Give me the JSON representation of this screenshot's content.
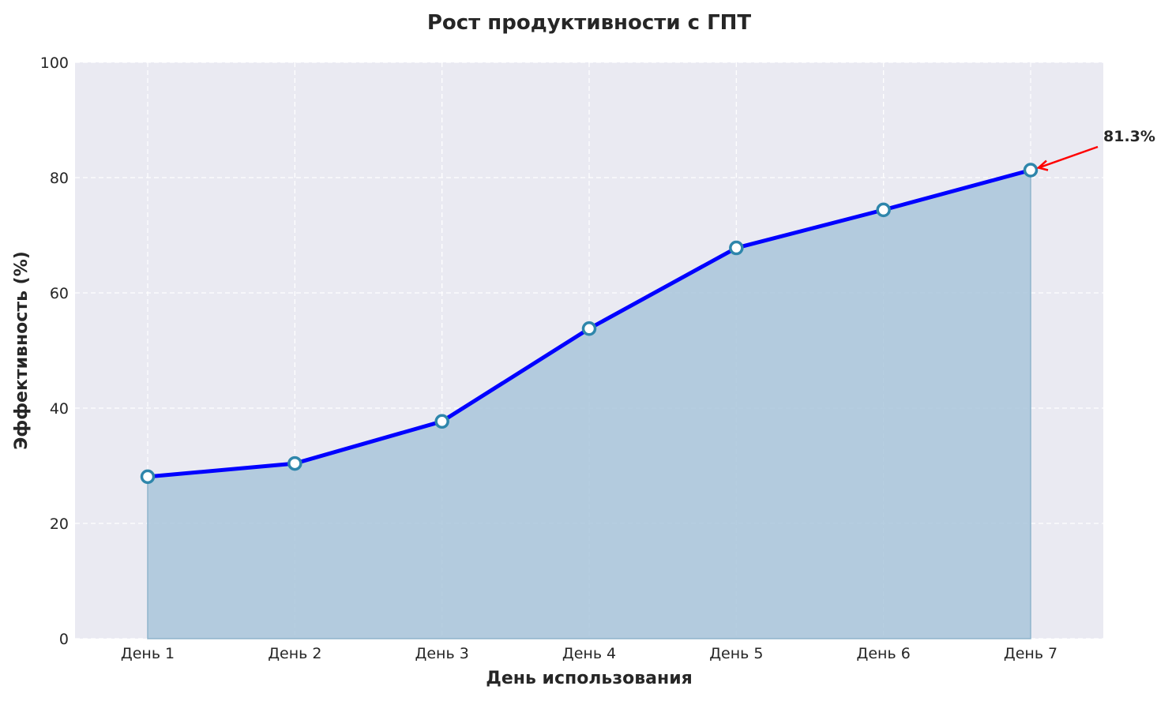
{
  "chart_data": {
    "type": "area",
    "title": "Рост продуктивности с ГПТ",
    "xlabel": "День использования",
    "ylabel": "Эффективность (%)",
    "categories": [
      "День 1",
      "День 2",
      "День 3",
      "День 4",
      "День 5",
      "День 6",
      "День 7"
    ],
    "values": [
      28.1,
      30.4,
      37.7,
      53.8,
      67.8,
      74.4,
      81.3
    ],
    "ylim": [
      0,
      100
    ],
    "yticks": [
      "0",
      "20",
      "40",
      "60",
      "80",
      "100"
    ],
    "grid": true,
    "annotation": {
      "text": "81.3%",
      "target_index": 6,
      "arrow_color": "#ff0000"
    },
    "colors": {
      "line": "#0000ff",
      "fill": "#a9c6da",
      "marker_edge": "#2e86ab",
      "marker_face": "#ffffff",
      "plot_bg": "#eaeaf2"
    }
  }
}
